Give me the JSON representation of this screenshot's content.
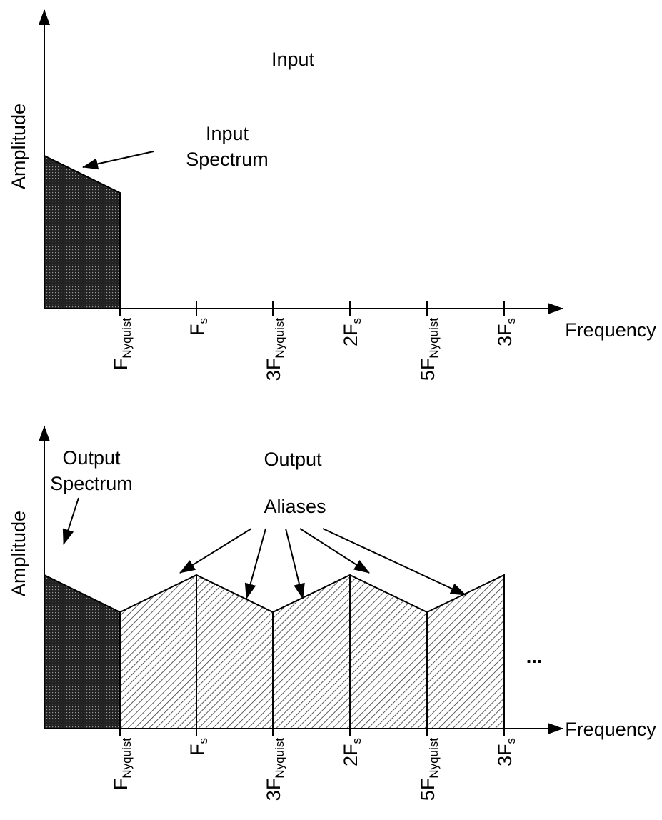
{
  "input": {
    "title": "Input",
    "annotation": [
      "Input",
      "Spectrum"
    ],
    "y_label": "Amplitude",
    "x_label": "Frequency"
  },
  "output": {
    "title": "Output",
    "annotation": [
      "Output",
      "Spectrum"
    ],
    "aliases_label": "Aliases",
    "continuation": "...",
    "y_label": "Amplitude",
    "x_label": "Frequency"
  },
  "ticks": [
    {
      "main": "F",
      "sub": "Nyquist"
    },
    {
      "main": "F",
      "sub": "s"
    },
    {
      "main": "3F",
      "sub": "Nyquist"
    },
    {
      "main": "2F",
      "sub": "s"
    },
    {
      "main": "5F",
      "sub": "Nyquist"
    },
    {
      "main": "3F",
      "sub": "s"
    }
  ]
}
